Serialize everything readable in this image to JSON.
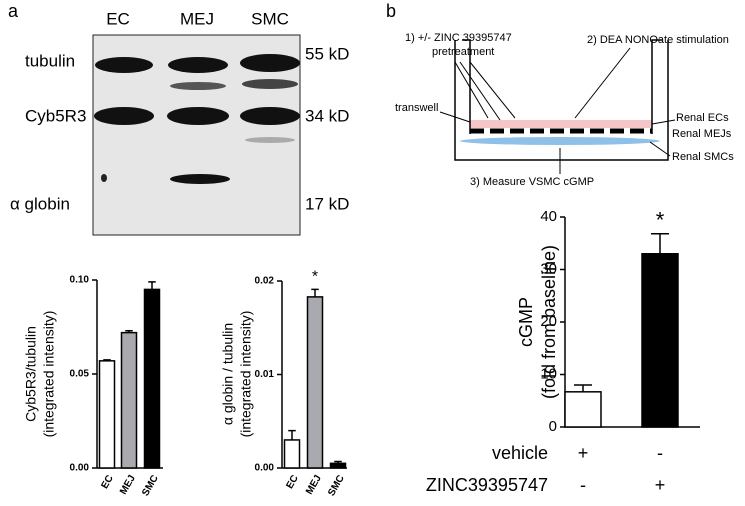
{
  "panels": [
    "a",
    "b"
  ],
  "blot": {
    "lanes": [
      "EC",
      "MEJ",
      "SMC"
    ],
    "bands": [
      "tubulin",
      "Cyb5R3",
      "α globin"
    ],
    "sizes": [
      "55 kD",
      "34 kD",
      "17 kD"
    ]
  },
  "diagram": {
    "steps": [
      "1) +/- ZINC 39395747",
      "pretreatment",
      "2) DEA NONOate stimulation",
      "3) Measure VSMC cGMP"
    ],
    "labels": [
      "transwell",
      "Renal ECs",
      "Renal MEJs",
      "Renal SMCs"
    ]
  },
  "chart_data": [
    {
      "type": "bar",
      "ylabel": [
        "Cyb5R3/tubulin",
        "(integrated intensity)"
      ],
      "categories": [
        "EC",
        "MEJ",
        "SMC"
      ],
      "values": [
        0.057,
        0.072,
        0.095
      ],
      "errors": [
        0.0005,
        0.001,
        0.004
      ],
      "colors": [
        "#ffffff",
        "#a9a9b0",
        "#000000"
      ],
      "ylim": [
        0,
        0.1
      ],
      "yticks": [
        {
          "value": 0,
          "label": "0.00"
        },
        {
          "value": 0.05,
          "label": "0.05"
        },
        {
          "value": 0.1,
          "label": "0.10"
        }
      ]
    },
    {
      "type": "bar",
      "ylabel": [
        "α globin / tubulin",
        "(integrated intensity)"
      ],
      "categories": [
        "EC",
        "MEJ",
        "SMC"
      ],
      "values": [
        0.003,
        0.0183,
        0.0005
      ],
      "errors": [
        0.001,
        0.0008,
        0.0002
      ],
      "colors": [
        "#ffffff",
        "#a9a9b0",
        "#000000"
      ],
      "ylim": [
        0,
        0.02
      ],
      "yticks": [
        {
          "value": 0,
          "label": "0.00"
        },
        {
          "value": 0.01,
          "label": "0.01"
        },
        {
          "value": 0.02,
          "label": "0.02"
        }
      ],
      "annotations": [
        {
          "text": "*",
          "index": 1
        }
      ]
    },
    {
      "type": "bar",
      "ylabel": [
        "cGMP",
        "(fold from baseline)"
      ],
      "values": [
        6.7,
        33
      ],
      "errors": [
        1.3,
        3.8
      ],
      "colors": [
        "#ffffff",
        "#000000"
      ],
      "ylim": [
        0,
        40
      ],
      "yticks": [
        0,
        10,
        20,
        30,
        40
      ],
      "annotations": [
        {
          "text": "*",
          "index": 1
        }
      ],
      "treatments": [
        {
          "name": "vehicle",
          "marks": [
            "+",
            "-"
          ]
        },
        {
          "name": "ZINC39395747",
          "marks": [
            "-",
            "+"
          ]
        }
      ]
    }
  ]
}
